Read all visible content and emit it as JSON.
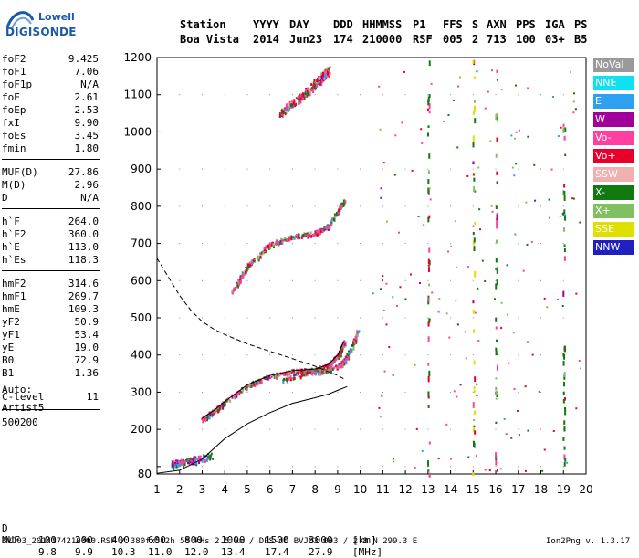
{
  "logo": {
    "line1": "Lowell",
    "line2": "DIGISONDE"
  },
  "header": {
    "row1": [
      "Station",
      "YYYY",
      "DAY",
      "DDD",
      "HHMMSS",
      "P1",
      "FFS",
      "S",
      "AXN",
      "PPS",
      "IGA",
      "PS"
    ],
    "row2": [
      "Boa Vista",
      "2014",
      "Jun23",
      "174",
      "210000",
      "RSF",
      "005",
      "2",
      "713",
      "100",
      "03+",
      "B5"
    ]
  },
  "params": [
    {
      "k": "foF2",
      "v": "9.425"
    },
    {
      "k": "foF1",
      "v": "7.06"
    },
    {
      "k": "foF1p",
      "v": "N/A"
    },
    {
      "k": "foE",
      "v": "2.61"
    },
    {
      "k": "foEp",
      "v": "2.53"
    },
    {
      "k": "fxI",
      "v": "9.90"
    },
    {
      "k": "foEs",
      "v": "3.45"
    },
    {
      "k": "fmin",
      "v": "1.80"
    },
    {
      "k": "MUF(D)",
      "v": "27.86"
    },
    {
      "k": "M(D)",
      "v": "2.96"
    },
    {
      "k": "D",
      "v": "N/A"
    },
    {
      "k": "h`F",
      "v": "264.0"
    },
    {
      "k": "h`F2",
      "v": "360.0"
    },
    {
      "k": "h`E",
      "v": "113.0"
    },
    {
      "k": "h`Es",
      "v": "118.3"
    },
    {
      "k": "hmF2",
      "v": "314.6"
    },
    {
      "k": "hmF1",
      "v": "269.7"
    },
    {
      "k": "hmE",
      "v": "109.3"
    },
    {
      "k": "yF2",
      "v": "50.9"
    },
    {
      "k": "yF1",
      "v": "53.4"
    },
    {
      "k": "yE",
      "v": "19.0"
    },
    {
      "k": "B0",
      "v": "72.9"
    },
    {
      "k": "B1",
      "v": "1.36"
    },
    {
      "k": "C-level",
      "v": "11"
    }
  ],
  "autoscale": {
    "label": "Auto:",
    "artist": "Artist5",
    "version": "500200"
  },
  "legend": [
    {
      "name": "NoVal",
      "color": "#9a9a9a"
    },
    {
      "name": "NNE",
      "color": "#10e0f0"
    },
    {
      "name": "E",
      "color": "#2fa0f0"
    },
    {
      "name": "W",
      "color": "#a0009a"
    },
    {
      "name": "Vo-",
      "color": "#ff40a0"
    },
    {
      "name": "Vo+",
      "color": "#e8002a"
    },
    {
      "name": "SSW",
      "color": "#f0b0b0"
    },
    {
      "name": "X-",
      "color": "#107a10"
    },
    {
      "name": "X+",
      "color": "#80c060"
    },
    {
      "name": "SSE",
      "color": "#e0e000"
    },
    {
      "name": "NNW",
      "color": "#2020c0"
    }
  ],
  "bottom": {
    "d_label": "D",
    "d_values": [
      "100",
      "200",
      "400",
      "600",
      "800",
      "1000",
      "1500",
      "3000",
      "[km]"
    ],
    "muf_label": "MUF",
    "muf_values": [
      "9.8",
      "9.9",
      "10.3",
      "11.0",
      "12.0",
      "13.4",
      "17.4",
      "27.9",
      "[MHz]"
    ]
  },
  "footer": {
    "left": "BVJ03_2014174210000.RSF / 380fx512h 50 kHs 2.5 km / DPS-4D BVJ03 003 / 2.8 N 299.3 E",
    "right": "Ion2Png v. 1.3.17"
  },
  "chart_data": {
    "type": "scatter",
    "title": "",
    "xlabel": "",
    "ylabel": "",
    "xlim": [
      1,
      20
    ],
    "ylim": [
      80,
      1200
    ],
    "xticks": [
      1,
      2,
      3,
      4,
      5,
      6,
      7,
      8,
      9,
      10,
      11,
      12,
      13,
      14,
      15,
      16,
      17,
      18,
      19,
      20
    ],
    "yticks": [
      80,
      100,
      200,
      300,
      400,
      500,
      600,
      700,
      800,
      900,
      1000,
      1100,
      1200
    ],
    "ytick_labels": [
      "80",
      "",
      "200",
      "300",
      "400",
      "500",
      "600",
      "700",
      "800",
      "900",
      "1000",
      "1100",
      "1200"
    ],
    "traces": [
      {
        "name": "F2 O-trace",
        "x": [
          3.0,
          3.5,
          4.0,
          5.0,
          6.0,
          7.0,
          8.0,
          8.6,
          9.0,
          9.3
        ],
        "y": [
          230,
          250,
          275,
          320,
          345,
          358,
          362,
          375,
          400,
          440
        ]
      },
      {
        "name": "F2 X-trace",
        "x": [
          6.5,
          7.5,
          8.5,
          9.2,
          9.6,
          9.9
        ],
        "y": [
          335,
          352,
          360,
          380,
          420,
          470
        ]
      },
      {
        "name": "Multiple 2F",
        "x": [
          4.3,
          5.0,
          6.0,
          7.0,
          8.0,
          8.6,
          9.3
        ],
        "y": [
          570,
          640,
          700,
          720,
          730,
          750,
          820
        ]
      },
      {
        "name": "Multiple 3F",
        "x": [
          6.4,
          7.0,
          7.8,
          8.3,
          8.6
        ],
        "y": [
          1050,
          1080,
          1120,
          1150,
          1170
        ]
      },
      {
        "name": "E / Es region",
        "x": [
          1.6,
          2.0,
          2.5,
          3.0,
          3.4
        ],
        "y": [
          108,
          112,
          118,
          125,
          130
        ]
      }
    ],
    "profile": {
      "x": [
        1.0,
        2.0,
        3.0,
        4.0,
        5.0,
        6.0,
        7.0,
        8.0,
        8.6,
        9.0,
        9.42
      ],
      "y": [
        82,
        90,
        120,
        175,
        215,
        245,
        270,
        285,
        295,
        305,
        315
      ]
    },
    "dashed": {
      "x": [
        1.0,
        1.5,
        2.0,
        2.5,
        3.0,
        3.5,
        4.0,
        5.0,
        6.0,
        7.0,
        8.0,
        8.6,
        9.0,
        9.3
      ],
      "y": [
        660,
        610,
        560,
        520,
        490,
        470,
        455,
        430,
        410,
        390,
        370,
        355,
        345,
        335
      ]
    },
    "noise_columns": [
      {
        "x": 13.0,
        "color": "#107a10"
      },
      {
        "x": 15.0,
        "color": "#e0e000"
      },
      {
        "x": 16.0,
        "color": "#107a10"
      },
      {
        "x": 19.0,
        "color": "#107a10"
      }
    ]
  }
}
